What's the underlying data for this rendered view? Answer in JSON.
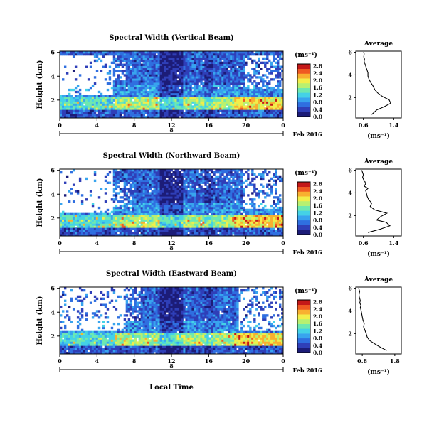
{
  "figure": {
    "xlabel": "Local Time",
    "date_label": "Feb 2016",
    "midnight_label": "8"
  },
  "colormap": [
    "#1c1c78",
    "#2f3fb8",
    "#2f6fe0",
    "#38a4ee",
    "#44d2e6",
    "#6ee8b0",
    "#b8f070",
    "#f2ee4a",
    "#f8b030",
    "#ef5a22",
    "#c41818"
  ],
  "chart_data": [
    {
      "type": "heatmap",
      "title": "Spectral Width (Vertical Beam)",
      "ylabel": "Height (km)",
      "x_ticks": [
        "0",
        "4",
        "8",
        "12",
        "16",
        "20",
        "0"
      ],
      "xlim": [
        0,
        24
      ],
      "y_ticks": [
        "2",
        "4",
        "6"
      ],
      "ylim": [
        0.5,
        6.1
      ],
      "colorbar": {
        "unit": "(ms⁻¹)",
        "ticks": [
          "0.0",
          "0.4",
          "0.8",
          "1.2",
          "1.6",
          "2.0",
          "2.4",
          "2.8"
        ],
        "range": [
          0,
          2.9
        ]
      },
      "profile": {
        "title": "Average",
        "xlabel": "(ms⁻¹)",
        "x_ticks": [
          "0.6",
          "1.4"
        ],
        "xlim": [
          0.4,
          1.6
        ],
        "y_ticks": [
          "2",
          "4",
          "6"
        ],
        "ylim": [
          0.2,
          6.1
        ],
        "x": [
          0.82,
          0.95,
          1.15,
          1.32,
          1.28,
          1.1,
          0.98,
          0.9,
          0.86,
          0.8,
          0.75,
          0.72,
          0.72,
          0.7,
          0.68,
          0.66,
          0.64,
          0.62,
          0.63,
          0.61,
          0.62,
          0.62,
          0.6
        ],
        "y": [
          0.5,
          0.9,
          1.2,
          1.5,
          1.8,
          2.1,
          2.4,
          2.7,
          3.0,
          3.3,
          3.6,
          3.9,
          4.2,
          4.4,
          4.6,
          4.8,
          5.0,
          5.2,
          5.4,
          5.6,
          5.8,
          5.9,
          6.0
        ]
      }
    },
    {
      "type": "heatmap",
      "title": "Spectral Width (Northward Beam)",
      "ylabel": "Height (km)",
      "x_ticks": [
        "0",
        "4",
        "8",
        "12",
        "16",
        "20",
        "0"
      ],
      "xlim": [
        0,
        24
      ],
      "y_ticks": [
        "2",
        "4",
        "6"
      ],
      "ylim": [
        0.5,
        6.1
      ],
      "colorbar": {
        "unit": "(ms⁻¹)",
        "ticks": [
          "0.0",
          "0.4",
          "0.8",
          "1.2",
          "1.6",
          "2.0",
          "2.4",
          "2.8"
        ],
        "range": [
          0,
          2.9
        ]
      },
      "profile": {
        "title": "Average",
        "xlabel": "(ms⁻¹)",
        "x_ticks": [
          "0.6",
          "1.4"
        ],
        "xlim": [
          0.4,
          1.6
        ],
        "y_ticks": [
          "2",
          "4",
          "6"
        ],
        "ylim": [
          0.2,
          6.1
        ],
        "x": [
          0.72,
          1.05,
          1.3,
          1.2,
          0.95,
          1.05,
          1.22,
          0.9,
          0.78,
          0.82,
          0.74,
          0.7,
          0.68,
          0.66,
          0.72,
          0.62,
          0.66,
          0.64,
          0.6,
          0.58,
          0.6,
          0.58,
          0.56
        ],
        "y": [
          0.5,
          0.8,
          1.1,
          1.4,
          1.6,
          1.9,
          2.2,
          2.5,
          2.8,
          3.1,
          3.4,
          3.7,
          4.0,
          4.2,
          4.4,
          4.6,
          4.8,
          5.0,
          5.2,
          5.4,
          5.6,
          5.8,
          6.0
        ]
      }
    },
    {
      "type": "heatmap",
      "title": "Spectral Width (Eastward Beam)",
      "ylabel": "Height (km)",
      "x_ticks": [
        "0",
        "4",
        "8",
        "12",
        "16",
        "20",
        "0"
      ],
      "xlim": [
        0,
        24
      ],
      "y_ticks": [
        "2",
        "4",
        "6"
      ],
      "ylim": [
        0.5,
        6.1
      ],
      "colorbar": {
        "unit": "(ms⁻¹)",
        "ticks": [
          "0.0",
          "0.4",
          "0.8",
          "1.2",
          "1.6",
          "2.0",
          "2.4",
          "2.8"
        ],
        "range": [
          0,
          2.9
        ]
      },
      "profile": {
        "title": "Average",
        "xlabel": "(ms⁻¹)",
        "x_ticks": [
          "0.8",
          "1.8"
        ],
        "xlim": [
          0.6,
          2.0
        ],
        "y_ticks": [
          "2",
          "4",
          "6"
        ],
        "ylim": [
          0.2,
          6.1
        ],
        "x": [
          1.55,
          1.35,
          1.18,
          1.02,
          0.95,
          0.92,
          0.88,
          0.84,
          0.86,
          0.82,
          0.8,
          0.78,
          0.76,
          0.74,
          0.76,
          0.72,
          0.74,
          0.72,
          0.7,
          0.7,
          0.72,
          0.7,
          0.68
        ],
        "y": [
          0.5,
          0.8,
          1.1,
          1.4,
          1.7,
          2.0,
          2.3,
          2.6,
          2.9,
          3.2,
          3.5,
          3.8,
          4.1,
          4.3,
          4.5,
          4.7,
          4.9,
          5.1,
          5.3,
          5.5,
          5.7,
          5.9,
          6.0
        ]
      }
    }
  ]
}
